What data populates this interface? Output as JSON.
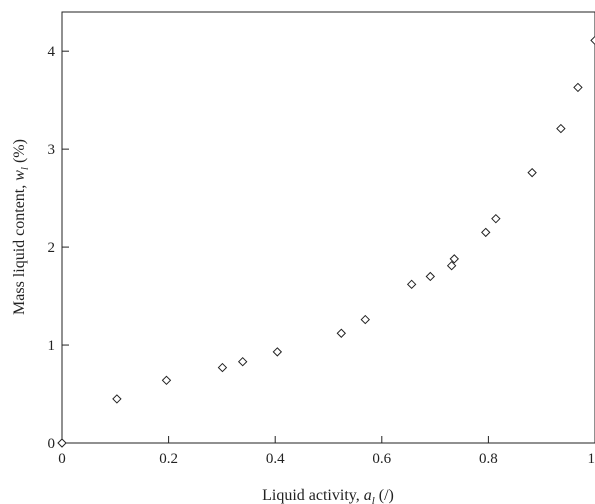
{
  "chart_data": {
    "type": "scatter",
    "xlabel": {
      "main": "Liquid activity, ",
      "var": "a",
      "sub": "l",
      "unit": " (/)"
    },
    "ylabel": {
      "main": "Mass liquid content, ",
      "var": "w",
      "sub": "l",
      "unit": " (%)"
    },
    "xlim": [
      0,
      1
    ],
    "ylim": [
      0,
      4.4
    ],
    "xticks": [
      0,
      0.2,
      0.4,
      0.6,
      0.8,
      1
    ],
    "xtick_labels": [
      "0",
      "0.2",
      "0.4",
      "0.6",
      "0.8",
      "1"
    ],
    "yticks": [
      0,
      1,
      2,
      3,
      4
    ],
    "ytick_labels": [
      "0",
      "1",
      "2",
      "3",
      "4"
    ],
    "grid": false,
    "marker": "open-diamond",
    "marker_color": "#222222",
    "series": [
      {
        "points": [
          [
            0.0,
            0.0
          ],
          [
            0.103,
            0.45
          ],
          [
            0.196,
            0.64
          ],
          [
            0.301,
            0.77
          ],
          [
            0.339,
            0.83
          ],
          [
            0.404,
            0.93
          ],
          [
            0.524,
            1.12
          ],
          [
            0.569,
            1.26
          ],
          [
            0.656,
            1.62
          ],
          [
            0.691,
            1.7
          ],
          [
            0.731,
            1.81
          ],
          [
            0.736,
            1.88
          ],
          [
            0.795,
            2.15
          ],
          [
            0.814,
            2.29
          ],
          [
            0.882,
            2.76
          ],
          [
            0.936,
            3.21
          ],
          [
            0.968,
            3.63
          ],
          [
            1.0,
            4.11
          ]
        ]
      }
    ]
  }
}
